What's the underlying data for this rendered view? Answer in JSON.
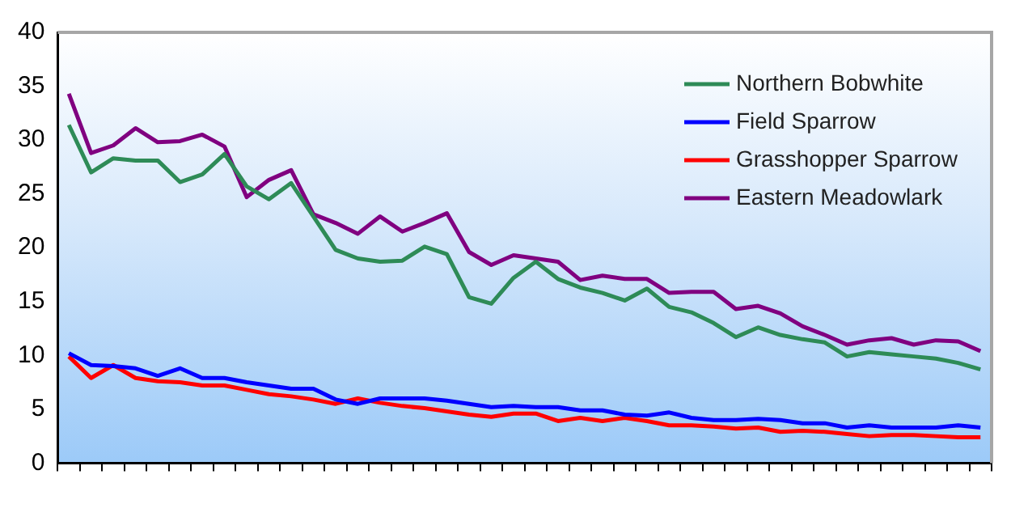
{
  "chart_data": {
    "type": "line",
    "categories": [
      null,
      null,
      null,
      null,
      null,
      null,
      null,
      null,
      null,
      null,
      null,
      null,
      null,
      null,
      null,
      null,
      null,
      null,
      null,
      null,
      null,
      null,
      null,
      null,
      null,
      null,
      null,
      null,
      null,
      null,
      null,
      null,
      null,
      null,
      null,
      null,
      null,
      null,
      null,
      null,
      null,
      null
    ],
    "series": [
      {
        "name": "Northern Bobwhite",
        "color": "#2e8b57",
        "values": [
          31.4,
          27.0,
          28.3,
          28.1,
          28.1,
          26.1,
          26.8,
          28.7,
          25.7,
          24.5,
          26.0,
          22.9,
          19.8,
          19.0,
          18.7,
          18.8,
          20.1,
          19.4,
          15.4,
          14.8,
          17.2,
          18.7,
          17.1,
          16.3,
          15.8,
          15.1,
          16.2,
          14.5,
          14.0,
          13.0,
          11.7,
          12.6,
          11.9,
          11.5,
          11.2,
          9.9,
          10.3,
          10.1,
          9.9,
          9.7,
          9.3,
          8.7
        ]
      },
      {
        "name": "Field Sparrow",
        "color": "#0000ff",
        "values": [
          10.2,
          9.1,
          9.0,
          8.8,
          8.1,
          8.8,
          7.9,
          7.9,
          7.5,
          7.2,
          6.9,
          6.9,
          5.9,
          5.5,
          6.0,
          6.0,
          6.0,
          5.8,
          5.5,
          5.2,
          5.3,
          5.2,
          5.2,
          4.9,
          4.9,
          4.5,
          4.4,
          4.7,
          4.2,
          4.0,
          4.0,
          4.1,
          4.0,
          3.7,
          3.7,
          3.3,
          3.5,
          3.3,
          3.3,
          3.3,
          3.5,
          3.3
        ]
      },
      {
        "name": "Grasshopper Sparrow",
        "color": "#ff0000",
        "values": [
          9.9,
          7.9,
          9.1,
          7.9,
          7.6,
          7.5,
          7.2,
          7.2,
          6.8,
          6.4,
          6.2,
          5.9,
          5.5,
          6.0,
          5.6,
          5.3,
          5.1,
          4.8,
          4.5,
          4.3,
          4.6,
          4.6,
          3.9,
          4.2,
          3.9,
          4.2,
          3.9,
          3.5,
          3.5,
          3.4,
          3.2,
          3.3,
          2.9,
          3.0,
          2.9,
          2.7,
          2.5,
          2.6,
          2.6,
          2.5,
          2.4,
          2.4
        ]
      },
      {
        "name": "Eastern Meadowlark",
        "color": "#800080",
        "values": [
          34.3,
          28.8,
          29.5,
          31.1,
          29.8,
          29.9,
          30.5,
          29.4,
          24.7,
          26.3,
          27.2,
          23.1,
          22.3,
          21.3,
          22.9,
          21.5,
          22.3,
          23.2,
          19.6,
          18.4,
          19.3,
          19.0,
          18.7,
          17.0,
          17.4,
          17.1,
          17.1,
          15.8,
          15.9,
          15.9,
          14.3,
          14.6,
          13.9,
          12.7,
          11.9,
          11.0,
          11.4,
          11.6,
          11.0,
          11.4,
          11.3,
          10.4
        ]
      }
    ],
    "ylim": [
      0,
      40
    ],
    "yticks": [
      0,
      5,
      10,
      15,
      20,
      25,
      30,
      35,
      40
    ],
    "grid": false,
    "legend": "top right",
    "marker": "none",
    "line_style": "solid"
  }
}
